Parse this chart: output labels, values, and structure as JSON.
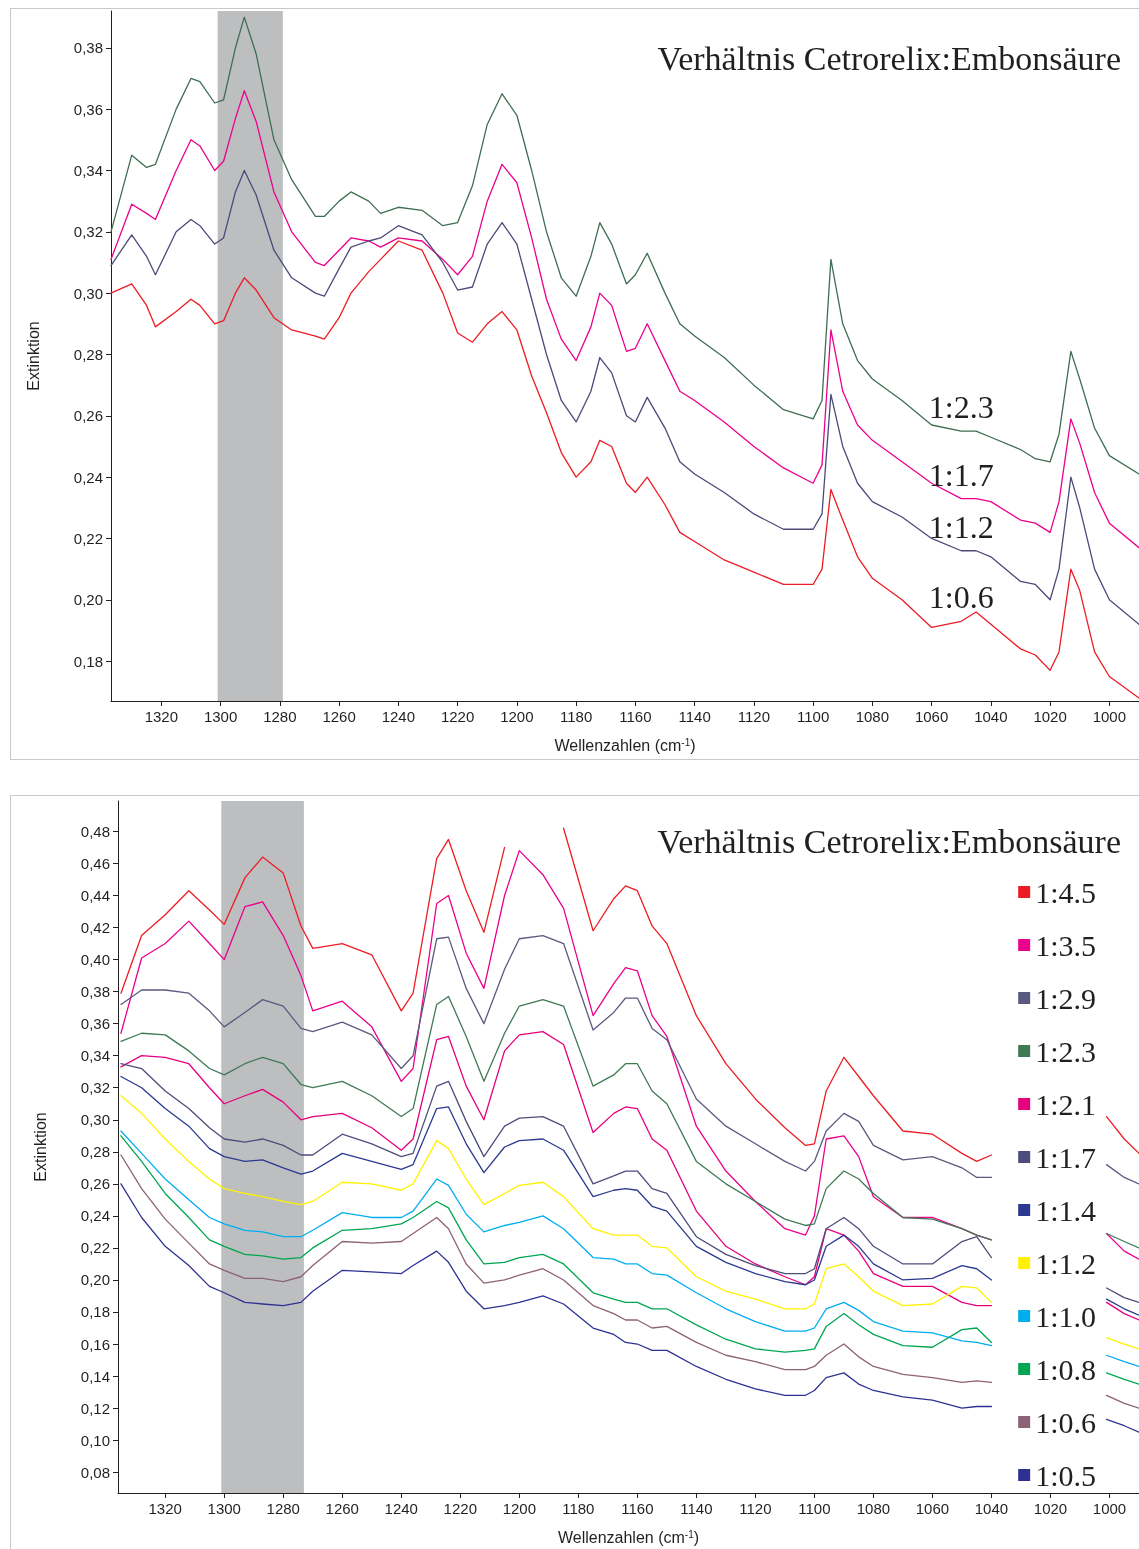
{
  "chart_data": [
    {
      "type": "line",
      "xlabel": "Wellenzahlen (cm$^{-1}$)",
      "ylabel": "Extinktion",
      "annotations": [
        "Verhältnis Cetrorelix:Embonsäure"
      ],
      "xlim": [
        1337,
        990
      ],
      "ylim": [
        0.167,
        0.392
      ],
      "xticks": [
        1320,
        1300,
        1280,
        1260,
        1240,
        1220,
        1200,
        1180,
        1160,
        1140,
        1120,
        1100,
        1080,
        1060,
        1040,
        1020,
        1000
      ],
      "yticks": [
        {
          "value": 0.18,
          "label": "0,18"
        },
        {
          "value": 0.2,
          "label": "0,20"
        },
        {
          "value": 0.22,
          "label": "0,22"
        },
        {
          "value": 0.24,
          "label": "0,24"
        },
        {
          "value": 0.26,
          "label": "0,26"
        },
        {
          "value": 0.28,
          "label": "0,28"
        },
        {
          "value": 0.3,
          "label": "0,30"
        },
        {
          "value": 0.32,
          "label": "0,32"
        },
        {
          "value": 0.34,
          "label": "0,34"
        },
        {
          "value": 0.36,
          "label": "0,36"
        },
        {
          "value": 0.38,
          "label": "0,38"
        }
      ],
      "bands": [
        {
          "axis": "x",
          "from": 1301,
          "to": 1279,
          "color": "#bcbec0"
        }
      ],
      "x": [
        1337,
        1330,
        1325,
        1322,
        1315,
        1310,
        1307,
        1302,
        1299,
        1295,
        1292,
        1288,
        1282,
        1276,
        1268,
        1265,
        1260,
        1256,
        1250,
        1246,
        1240,
        1232,
        1225,
        1220,
        1215,
        1210,
        1205,
        1200,
        1195,
        1190,
        1185,
        1180,
        1175,
        1172,
        1168,
        1163,
        1160,
        1156,
        1150,
        1145,
        1140,
        1130,
        1120,
        1110,
        1100,
        1097,
        1094,
        1090,
        1085,
        1080,
        1070,
        1060,
        1050,
        1045,
        1040,
        1030,
        1025,
        1020,
        1017,
        1013,
        1010,
        1005,
        1000,
        990
      ],
      "series": [
        {
          "name": "1:2.3",
          "color": "#3f6e52",
          "values": [
            0.32,
            0.345,
            0.341,
            0.342,
            0.36,
            0.37,
            0.369,
            0.362,
            0.363,
            0.38,
            0.39,
            0.378,
            0.35,
            0.337,
            0.325,
            0.325,
            0.33,
            0.333,
            0.33,
            0.326,
            0.328,
            0.327,
            0.322,
            0.323,
            0.335,
            0.355,
            0.365,
            0.358,
            0.34,
            0.32,
            0.305,
            0.299,
            0.312,
            0.323,
            0.316,
            0.303,
            0.306,
            0.313,
            0.3,
            0.29,
            0.286,
            0.279,
            0.27,
            0.262,
            0.259,
            0.265,
            0.311,
            0.29,
            0.278,
            0.272,
            0.265,
            0.257,
            0.255,
            0.255,
            0.253,
            0.249,
            0.246,
            0.245,
            0.254,
            0.281,
            0.272,
            0.256,
            0.247,
            0.241
          ]
        },
        {
          "name": "1:1.7",
          "color": "#ec008c",
          "values": [
            0.311,
            0.329,
            0.326,
            0.324,
            0.34,
            0.35,
            0.348,
            0.34,
            0.343,
            0.357,
            0.366,
            0.356,
            0.333,
            0.32,
            0.31,
            0.309,
            0.314,
            0.318,
            0.317,
            0.315,
            0.318,
            0.317,
            0.311,
            0.306,
            0.312,
            0.33,
            0.342,
            0.336,
            0.318,
            0.298,
            0.285,
            0.278,
            0.289,
            0.3,
            0.296,
            0.281,
            0.282,
            0.29,
            0.278,
            0.268,
            0.265,
            0.258,
            0.25,
            0.243,
            0.238,
            0.244,
            0.288,
            0.268,
            0.257,
            0.252,
            0.245,
            0.238,
            0.233,
            0.233,
            0.232,
            0.226,
            0.225,
            0.222,
            0.232,
            0.259,
            0.251,
            0.235,
            0.225,
            0.217
          ]
        },
        {
          "name": "1:1.2",
          "color": "#4b4a7a",
          "values": [
            0.309,
            0.319,
            0.312,
            0.306,
            0.32,
            0.324,
            0.322,
            0.316,
            0.318,
            0.333,
            0.34,
            0.332,
            0.314,
            0.305,
            0.3,
            0.299,
            0.308,
            0.315,
            0.317,
            0.318,
            0.322,
            0.319,
            0.31,
            0.301,
            0.302,
            0.316,
            0.323,
            0.316,
            0.298,
            0.28,
            0.265,
            0.258,
            0.268,
            0.279,
            0.274,
            0.26,
            0.258,
            0.266,
            0.256,
            0.245,
            0.241,
            0.235,
            0.228,
            0.223,
            0.223,
            0.228,
            0.267,
            0.25,
            0.238,
            0.232,
            0.227,
            0.22,
            0.216,
            0.216,
            0.214,
            0.206,
            0.205,
            0.2,
            0.21,
            0.24,
            0.23,
            0.21,
            0.2,
            0.192
          ]
        },
        {
          "name": "1:0.6",
          "color": "#ed1c24",
          "values": [
            0.3,
            0.303,
            0.296,
            0.289,
            0.294,
            0.298,
            0.296,
            0.29,
            0.291,
            0.3,
            0.305,
            0.301,
            0.292,
            0.288,
            0.286,
            0.285,
            0.292,
            0.3,
            0.307,
            0.311,
            0.317,
            0.314,
            0.3,
            0.287,
            0.284,
            0.29,
            0.294,
            0.288,
            0.273,
            0.261,
            0.248,
            0.24,
            0.245,
            0.252,
            0.25,
            0.238,
            0.235,
            0.24,
            0.231,
            0.222,
            0.219,
            0.213,
            0.209,
            0.205,
            0.205,
            0.21,
            0.236,
            0.226,
            0.214,
            0.207,
            0.2,
            0.191,
            0.193,
            0.196,
            0.192,
            0.184,
            0.182,
            0.177,
            0.183,
            0.21,
            0.203,
            0.183,
            0.175,
            0.168
          ]
        }
      ]
    },
    {
      "type": "line",
      "xlabel": "Wellenzahlen (cm$^{-1}$)",
      "ylabel": "Extinktion",
      "annotations": [
        "Verhältnis Cetrorelix:Embonsäure"
      ],
      "legend": "right",
      "xlim": [
        1336,
        990
      ],
      "ylim": [
        0.067,
        0.499
      ],
      "xticks": [
        1320,
        1300,
        1280,
        1260,
        1240,
        1220,
        1200,
        1180,
        1160,
        1140,
        1120,
        1100,
        1080,
        1060,
        1040,
        1020,
        1000
      ],
      "yticks": [
        {
          "value": 0.08,
          "label": "0,08"
        },
        {
          "value": 0.1,
          "label": "0,10"
        },
        {
          "value": 0.12,
          "label": "0,12"
        },
        {
          "value": 0.14,
          "label": "0,14"
        },
        {
          "value": 0.16,
          "label": "0,16"
        },
        {
          "value": 0.18,
          "label": "0,18"
        },
        {
          "value": 0.2,
          "label": "0,20"
        },
        {
          "value": 0.22,
          "label": "0,22"
        },
        {
          "value": 0.24,
          "label": "0,24"
        },
        {
          "value": 0.26,
          "label": "0,26"
        },
        {
          "value": 0.28,
          "label": "0,28"
        },
        {
          "value": 0.3,
          "label": "0,30"
        },
        {
          "value": 0.32,
          "label": "0,32"
        },
        {
          "value": 0.34,
          "label": "0,34"
        },
        {
          "value": 0.36,
          "label": "0,36"
        },
        {
          "value": 0.38,
          "label": "0,38"
        },
        {
          "value": 0.4,
          "label": "0,40"
        },
        {
          "value": 0.42,
          "label": "0,42"
        },
        {
          "value": 0.44,
          "label": "0,44"
        },
        {
          "value": 0.46,
          "label": "0,46"
        },
        {
          "value": 0.48,
          "label": "0,48"
        }
      ],
      "bands": [
        {
          "axis": "x",
          "from": 1301,
          "to": 1273,
          "color": "#bcbec0"
        }
      ],
      "x": [
        1335,
        1328,
        1320,
        1312,
        1305,
        1300,
        1293,
        1287,
        1280,
        1274,
        1270,
        1260,
        1250,
        1240,
        1236,
        1228,
        1224,
        1218,
        1212,
        1205,
        1200,
        1192,
        1185,
        1175,
        1168,
        1164,
        1160,
        1155,
        1150,
        1140,
        1130,
        1120,
        1110,
        1103,
        1100,
        1096,
        1090,
        1085,
        1080,
        1070,
        1060,
        1050,
        1045,
        1040,
        1020,
        1001,
        995,
        990
      ],
      "series": [
        {
          "name": "1:4.5",
          "color": "#ed1c24",
          "values": [
            0.379,
            0.415,
            0.428,
            0.443,
            0.431,
            0.422,
            0.451,
            0.464,
            0.454,
            0.421,
            0.407,
            0.41,
            0.403,
            0.368,
            0.379,
            0.463,
            0.475,
            0.443,
            0.417,
            0.47,
            null,
            null,
            0.482,
            0.418,
            0.438,
            0.446,
            0.443,
            0.421,
            0.41,
            0.365,
            0.335,
            0.313,
            0.295,
            0.284,
            0.285,
            0.318,
            0.339,
            0.327,
            0.315,
            0.293,
            0.291,
            0.279,
            0.274,
            0.278,
            null,
            0.302,
            0.288,
            0.279
          ]
        },
        {
          "name": "1:3.5",
          "color": "#ec008c",
          "values": [
            0.354,
            0.401,
            0.41,
            0.424,
            0.41,
            0.4,
            0.433,
            0.436,
            0.415,
            0.39,
            0.368,
            0.374,
            0.358,
            0.324,
            0.332,
            0.435,
            0.44,
            0.404,
            0.382,
            0.44,
            0.468,
            0.453,
            0.432,
            0.365,
            0.385,
            0.395,
            0.393,
            0.365,
            0.352,
            0.296,
            0.268,
            0.249,
            0.232,
            0.228,
            0.24,
            0.288,
            0.29,
            0.277,
            0.252,
            0.239,
            0.239,
            0.232,
            0.228,
            0.225,
            null,
            0.229,
            0.218,
            0.213
          ]
        },
        {
          "name": "1:2.9",
          "color": "#5a5a80",
          "values": [
            0.372,
            0.381,
            0.381,
            0.379,
            0.368,
            0.358,
            0.367,
            0.375,
            0.371,
            0.357,
            0.355,
            0.361,
            0.353,
            0.332,
            0.34,
            0.413,
            0.414,
            0.382,
            0.36,
            0.394,
            0.413,
            0.415,
            0.41,
            0.356,
            0.367,
            0.376,
            0.376,
            0.357,
            0.35,
            0.313,
            0.296,
            0.285,
            0.274,
            0.268,
            0.274,
            0.293,
            0.304,
            0.299,
            0.284,
            0.275,
            0.277,
            0.27,
            0.264,
            0.264,
            null,
            0.272,
            0.264,
            0.26
          ]
        },
        {
          "name": "1:2.3",
          "color": "#3f7a55",
          "values": [
            0.349,
            0.354,
            0.353,
            0.343,
            0.332,
            0.328,
            0.335,
            0.339,
            0.335,
            0.322,
            0.32,
            0.324,
            0.315,
            0.302,
            0.307,
            0.372,
            0.377,
            0.352,
            0.324,
            0.354,
            0.371,
            0.375,
            0.371,
            0.321,
            0.328,
            0.335,
            0.335,
            0.318,
            0.31,
            0.274,
            0.26,
            0.249,
            0.238,
            0.234,
            0.235,
            0.257,
            0.268,
            0.263,
            0.254,
            0.239,
            0.238,
            0.232,
            0.228,
            0.225,
            null,
            0.229,
            0.224,
            0.22
          ]
        },
        {
          "name": "1:2.1",
          "color": "#e6007e",
          "values": [
            0.333,
            0.34,
            0.339,
            0.335,
            0.32,
            0.31,
            0.315,
            0.319,
            0.311,
            0.3,
            0.302,
            0.304,
            0.295,
            0.281,
            0.288,
            0.35,
            0.352,
            0.321,
            0.3,
            0.343,
            0.353,
            0.355,
            0.347,
            0.292,
            0.304,
            0.308,
            0.307,
            0.288,
            0.281,
            0.243,
            0.221,
            0.21,
            0.202,
            0.197,
            0.202,
            0.232,
            0.228,
            0.218,
            0.204,
            0.196,
            0.196,
            0.186,
            0.184,
            0.184,
            null,
            0.186,
            0.179,
            0.175
          ]
        },
        {
          "name": "1:1.7",
          "color": "#4d4d7d",
          "values": [
            0.335,
            0.332,
            0.318,
            0.307,
            0.295,
            0.288,
            0.286,
            0.288,
            0.284,
            0.278,
            0.278,
            0.291,
            0.285,
            0.277,
            0.279,
            0.321,
            0.324,
            0.299,
            0.277,
            0.296,
            0.301,
            0.302,
            0.296,
            0.26,
            0.265,
            0.268,
            0.268,
            0.257,
            0.254,
            0.227,
            0.216,
            0.209,
            0.204,
            0.204,
            0.207,
            0.232,
            0.239,
            0.232,
            0.221,
            0.21,
            0.21,
            0.224,
            0.227,
            0.214,
            null,
            0.195,
            0.189,
            0.186
          ]
        },
        {
          "name": "1:1.4",
          "color": "#2b3990",
          "values": [
            0.327,
            0.32,
            0.307,
            0.296,
            0.282,
            0.277,
            0.274,
            0.275,
            0.27,
            0.266,
            0.268,
            0.279,
            0.274,
            0.269,
            0.272,
            0.307,
            0.308,
            0.285,
            0.267,
            0.283,
            0.287,
            0.288,
            0.281,
            0.252,
            0.256,
            0.257,
            0.256,
            0.246,
            0.243,
            0.221,
            0.211,
            0.204,
            0.199,
            0.197,
            0.2,
            0.221,
            0.228,
            0.221,
            0.21,
            0.2,
            0.201,
            0.209,
            0.207,
            0.2,
            null,
            0.188,
            0.182,
            0.178
          ]
        },
        {
          "name": "1:1.2",
          "color": "#fff200",
          "values": [
            0.315,
            0.304,
            0.288,
            0.274,
            0.263,
            0.257,
            0.254,
            0.252,
            0.249,
            0.247,
            0.249,
            0.261,
            0.26,
            0.256,
            0.26,
            0.287,
            0.282,
            0.263,
            0.247,
            0.254,
            0.259,
            0.261,
            0.252,
            0.232,
            0.228,
            0.228,
            0.228,
            0.221,
            0.22,
            0.202,
            0.193,
            0.188,
            0.182,
            0.182,
            0.185,
            0.207,
            0.21,
            0.202,
            0.193,
            0.184,
            0.185,
            0.196,
            0.195,
            0.186,
            null,
            0.164,
            0.16,
            0.157
          ]
        },
        {
          "name": "1:1.0",
          "color": "#00aeef",
          "values": [
            0.293,
            0.279,
            0.263,
            0.25,
            0.239,
            0.235,
            0.231,
            0.23,
            0.227,
            0.227,
            0.231,
            0.242,
            0.239,
            0.239,
            0.243,
            0.263,
            0.259,
            0.241,
            0.23,
            0.234,
            0.236,
            0.24,
            0.232,
            0.214,
            0.213,
            0.21,
            0.21,
            0.204,
            0.203,
            0.192,
            0.182,
            0.174,
            0.168,
            0.168,
            0.17,
            0.182,
            0.186,
            0.181,
            0.174,
            0.168,
            0.167,
            0.162,
            0.161,
            0.159,
            null,
            0.153,
            0.149,
            0.146
          ]
        },
        {
          "name": "1:0.8",
          "color": "#00a651",
          "values": [
            0.29,
            0.274,
            0.254,
            0.239,
            0.225,
            0.221,
            0.216,
            0.215,
            0.213,
            0.214,
            0.22,
            0.231,
            0.232,
            0.235,
            0.239,
            0.249,
            0.245,
            0.225,
            0.21,
            0.211,
            0.214,
            0.216,
            0.21,
            0.192,
            0.188,
            0.186,
            0.186,
            0.182,
            0.182,
            0.172,
            0.163,
            0.157,
            0.155,
            0.156,
            0.157,
            0.171,
            0.179,
            0.172,
            0.166,
            0.159,
            0.158,
            0.169,
            0.17,
            0.161,
            null,
            0.142,
            0.138,
            0.135
          ]
        },
        {
          "name": "1:0.6",
          "color": "#8c6276",
          "values": [
            0.278,
            0.257,
            0.238,
            0.223,
            0.21,
            0.206,
            0.201,
            0.201,
            0.199,
            0.202,
            0.209,
            0.224,
            0.223,
            0.224,
            0.229,
            0.239,
            0.232,
            0.21,
            0.198,
            0.2,
            0.203,
            0.207,
            0.2,
            0.184,
            0.179,
            0.175,
            0.175,
            0.17,
            0.171,
            0.161,
            0.153,
            0.149,
            0.144,
            0.144,
            0.146,
            0.153,
            0.16,
            0.152,
            0.146,
            0.141,
            0.139,
            0.136,
            0.137,
            0.136,
            null,
            0.128,
            0.123,
            0.12
          ]
        },
        {
          "name": "1:0.5",
          "color": "#2e3192",
          "values": [
            0.26,
            0.239,
            0.221,
            0.209,
            0.196,
            0.192,
            0.186,
            0.185,
            0.184,
            0.186,
            0.193,
            0.206,
            0.205,
            0.204,
            0.209,
            0.218,
            0.211,
            0.193,
            0.182,
            0.184,
            0.186,
            0.19,
            0.185,
            0.17,
            0.166,
            0.161,
            0.16,
            0.156,
            0.156,
            0.146,
            0.138,
            0.132,
            0.128,
            0.128,
            0.131,
            0.139,
            0.142,
            0.135,
            0.131,
            0.127,
            0.125,
            0.12,
            0.121,
            0.121,
            null,
            0.113,
            0.109,
            0.105
          ]
        }
      ]
    }
  ]
}
